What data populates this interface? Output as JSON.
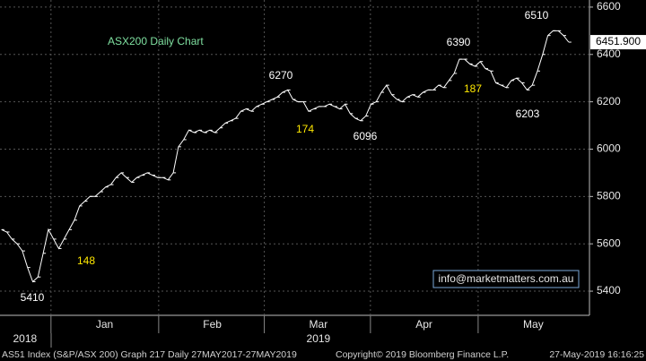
{
  "chart_data": {
    "type": "line",
    "title": "ASX200 Daily Chart",
    "title_color": "#7fe0a0",
    "background": "#000000",
    "grid": true,
    "x": [
      0,
      1,
      2,
      3,
      4,
      5,
      6,
      7,
      8,
      9,
      10,
      11,
      12,
      13,
      14,
      15,
      16,
      17,
      18,
      19,
      20,
      21,
      22,
      23,
      24,
      25,
      26,
      27,
      28,
      29,
      30,
      31,
      32,
      33,
      34,
      35,
      36,
      37,
      38,
      39,
      40,
      41,
      42,
      43,
      44,
      45,
      46,
      47,
      48,
      49,
      50,
      51,
      52,
      53,
      54,
      55,
      56,
      57,
      58,
      59,
      60,
      61,
      62,
      63,
      64,
      65,
      66,
      67,
      68,
      69,
      70,
      71,
      72,
      73,
      74,
      75,
      76,
      77,
      78,
      79,
      80,
      81,
      82,
      83,
      84,
      85,
      86,
      87,
      88,
      89,
      90,
      91,
      92,
      93,
      94,
      95,
      96,
      97,
      98,
      99,
      100,
      101,
      102,
      103,
      104,
      105,
      106,
      107,
      108,
      109
    ],
    "xlim": [
      -0.3,
      113
    ],
    "xticks": [
      {
        "value": 19.8,
        "label": "Jan"
      },
      {
        "value": 40.5,
        "label": "Feb"
      },
      {
        "value": 60.9,
        "label": "Mar"
      },
      {
        "value": 81.2,
        "label": "Apr"
      },
      {
        "value": 102.2,
        "label": "May"
      }
    ],
    "month_bounds": [
      9.5,
      30.2,
      50.5,
      70.9,
      91.6
    ],
    "years": [
      {
        "value": 4.5,
        "label": "2018"
      },
      {
        "value": 60.9,
        "label": "2019"
      }
    ],
    "ylim": [
      5298,
      6630
    ],
    "yticks": [
      5400,
      5600,
      5800,
      6000,
      6200,
      6400,
      6600
    ],
    "series": [
      {
        "name": "AS51 Index",
        "color": "#ffffff",
        "values": [
          5660,
          5650,
          5620,
          5600,
          5570,
          5500,
          5440,
          5460,
          5560,
          5660,
          5620,
          5580,
          5620,
          5660,
          5700,
          5760,
          5780,
          5800,
          5800,
          5820,
          5840,
          5850,
          5880,
          5900,
          5880,
          5860,
          5880,
          5890,
          5900,
          5890,
          5880,
          5880,
          5870,
          5900,
          6010,
          6040,
          6080,
          6070,
          6080,
          6070,
          6080,
          6070,
          6090,
          6110,
          6120,
          6130,
          6160,
          6170,
          6160,
          6180,
          6190,
          6200,
          6210,
          6220,
          6240,
          6250,
          6210,
          6200,
          6200,
          6160,
          6170,
          6180,
          6180,
          6190,
          6180,
          6170,
          6190,
          6150,
          6130,
          6120,
          6140,
          6190,
          6200,
          6240,
          6270,
          6230,
          6210,
          6200,
          6220,
          6230,
          6220,
          6240,
          6250,
          6250,
          6270,
          6260,
          6290,
          6320,
          6380,
          6380,
          6360,
          6350,
          6370,
          6340,
          6330,
          6280,
          6270,
          6260,
          6290,
          6300,
          6280,
          6250,
          6270,
          6330,
          6400,
          6480,
          6500,
          6500,
          6480,
          6452
        ]
      }
    ],
    "last_price": {
      "value": 6451.9,
      "label": "6451.900"
    },
    "annotations": [
      {
        "text": "5410",
        "color": "#ffffff"
      },
      {
        "text": "148",
        "color": "#ffe800"
      },
      {
        "text": "6270",
        "color": "#ffffff"
      },
      {
        "text": "174",
        "color": "#ffe800"
      },
      {
        "text": "6096",
        "color": "#ffffff"
      },
      {
        "text": "6390",
        "color": "#ffffff"
      },
      {
        "text": "187",
        "color": "#ffe800"
      },
      {
        "text": "6203",
        "color": "#ffffff"
      },
      {
        "text": "6510",
        "color": "#ffffff"
      }
    ],
    "watermark": "info@marketmatters.com.au",
    "footer": {
      "left": "AS51 Index (S&P/ASX 200) Graph 217  Daily 27MAY2017-27MAY2019",
      "middle": "Copyright© 2019 Bloomberg Finance L.P.",
      "right": "27-May-2019 16:16:25"
    }
  }
}
